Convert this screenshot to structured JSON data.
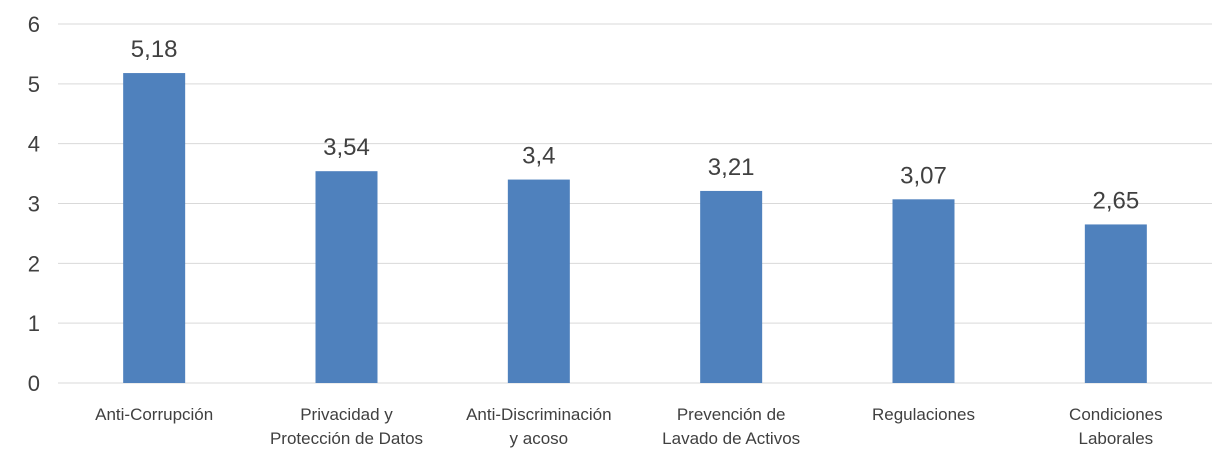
{
  "chart_data": {
    "type": "bar",
    "title": "",
    "xlabel": "",
    "ylabel": "",
    "categories": [
      "Anti-Corrupción",
      "Privacidad y Protección de Datos",
      "Anti-Discriminación y acoso",
      "Prevención de Lavado de Activos",
      "Regulaciones",
      "Condiciones Laborales"
    ],
    "category_lines": [
      [
        "Anti-Corrupción"
      ],
      [
        "Privacidad y",
        "Protección de Datos"
      ],
      [
        "Anti-Discriminación",
        "y acoso"
      ],
      [
        "Prevención de",
        "Lavado de Activos"
      ],
      [
        "Regulaciones"
      ],
      [
        "Condiciones",
        "Laborales"
      ]
    ],
    "values": [
      5.18,
      3.54,
      3.4,
      3.21,
      3.07,
      2.65
    ],
    "data_labels": [
      "5,18",
      "3,54",
      "3,4",
      "3,21",
      "3,07",
      "2,65"
    ],
    "ylim": [
      0,
      6
    ],
    "yticks": [
      0,
      1,
      2,
      3,
      4,
      5,
      6
    ],
    "grid": true,
    "legend": "none",
    "bar_color": "#4f81bd"
  }
}
